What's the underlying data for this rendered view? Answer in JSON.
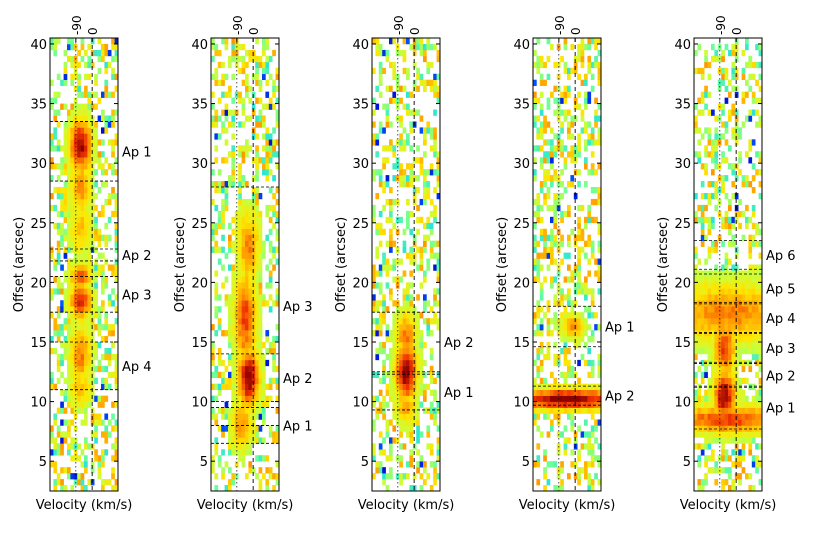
{
  "chart_data": [
    {
      "type": "heatmap",
      "title": "",
      "xlabel": "Velocity (km/s)",
      "ylabel": "Offset (arcsec)",
      "ylim": [
        2.5,
        40.5
      ],
      "y_ticks": [
        5,
        10,
        15,
        20,
        25,
        30,
        35,
        40
      ],
      "top_ticks": [
        "-90",
        "0"
      ],
      "velocity_markers": [
        "-90",
        "0"
      ],
      "apertures": [
        {
          "label": "Ap 1",
          "center": 31,
          "half": 2.5
        },
        {
          "label": "Ap 2",
          "center": 22.3,
          "half": 0.5
        },
        {
          "label": "Ap 3",
          "center": 19,
          "half": 1.5
        },
        {
          "label": "Ap 4",
          "center": 13,
          "half": 2
        }
      ],
      "emission_components": [
        {
          "offset": 31.5,
          "width": 2.2,
          "velocity": 0.45,
          "amp": 1.0
        },
        {
          "offset": 28,
          "width": 2.5,
          "velocity": 0.45,
          "amp": 0.55
        },
        {
          "offset": 24.5,
          "width": 2.0,
          "velocity": 0.45,
          "amp": 0.45
        },
        {
          "offset": 20.5,
          "width": 1.2,
          "velocity": 0.45,
          "amp": 0.7
        },
        {
          "offset": 18.5,
          "width": 1.6,
          "velocity": 0.45,
          "amp": 0.85
        },
        {
          "offset": 14,
          "width": 2.5,
          "velocity": 0.45,
          "amp": 0.6
        },
        {
          "offset": 11,
          "width": 1.5,
          "velocity": 0.45,
          "amp": 0.45
        }
      ]
    },
    {
      "type": "heatmap",
      "title": "",
      "xlabel": "Velocity (km/s)",
      "ylabel": "Offset (arcsec)",
      "ylim": [
        2.5,
        40.5
      ],
      "y_ticks": [
        5,
        10,
        15,
        20,
        25,
        30,
        35,
        40
      ],
      "top_ticks": [
        "-90",
        "0"
      ],
      "velocity_markers": [
        "-90",
        "0"
      ],
      "apertures": [
        {
          "label": "Ap 3",
          "center": 18,
          "half": 10
        },
        {
          "label": "Ap 2",
          "center": 12,
          "half": 2
        },
        {
          "label": "Ap 1",
          "center": 8,
          "half": 1.5
        }
      ],
      "emission_components": [
        {
          "offset": 12,
          "width": 2.5,
          "velocity": 0.55,
          "amp": 1.0
        },
        {
          "offset": 17,
          "width": 4.0,
          "velocity": 0.5,
          "amp": 0.75
        },
        {
          "offset": 23,
          "width": 3.0,
          "velocity": 0.55,
          "amp": 0.6
        },
        {
          "offset": 8,
          "width": 2.0,
          "velocity": 0.45,
          "amp": 0.55
        }
      ]
    },
    {
      "type": "heatmap",
      "title": "",
      "xlabel": "Velocity (km/s)",
      "ylabel": "Offset (arcsec)",
      "ylim": [
        2.5,
        40.5
      ],
      "y_ticks": [
        5,
        10,
        15,
        20,
        25,
        30,
        35,
        40
      ],
      "top_ticks": [
        "-90",
        "0"
      ],
      "velocity_markers": [
        "-90",
        "0"
      ],
      "apertures": [
        {
          "label": "Ap 2",
          "center": 15,
          "half": 2.5
        },
        {
          "label": "Ap 1",
          "center": 10.8,
          "half": 1.5
        }
      ],
      "emission_components": [
        {
          "offset": 12.5,
          "width": 2.5,
          "velocity": 0.5,
          "amp": 1.0
        },
        {
          "offset": 15.5,
          "width": 2.0,
          "velocity": 0.5,
          "amp": 0.6
        },
        {
          "offset": 9.5,
          "width": 1.5,
          "velocity": 0.5,
          "amp": 0.5
        }
      ]
    },
    {
      "type": "heatmap",
      "title": "",
      "xlabel": "Velocity (km/s)",
      "ylabel": "Offset (arcsec)",
      "ylim": [
        2.5,
        40.5
      ],
      "y_ticks": [
        5,
        10,
        15,
        20,
        25,
        30,
        35,
        40
      ],
      "top_ticks": [
        "-90",
        "0"
      ],
      "velocity_markers": [
        "-90",
        "0"
      ],
      "apertures": [
        {
          "label": "Ap 1",
          "center": 16.3,
          "half": 1.7
        },
        {
          "label": "Ap 2",
          "center": 10.5,
          "half": 0.8
        }
      ],
      "emission_components": [
        {
          "offset": 10.2,
          "width": 0.9,
          "velocity": 0.5,
          "amp": 1.0,
          "wide": true
        },
        {
          "offset": 16.3,
          "width": 0.9,
          "velocity": 0.6,
          "amp": 0.6
        }
      ]
    },
    {
      "type": "heatmap",
      "title": "",
      "xlabel": "Velocity (km/s)",
      "ylabel": "Offset (arcsec)",
      "ylim": [
        2.5,
        40.5
      ],
      "y_ticks": [
        5,
        10,
        15,
        20,
        25,
        30,
        35,
        40
      ],
      "top_ticks": [
        "-90",
        "0"
      ],
      "velocity_markers": [
        "-90",
        "0"
      ],
      "apertures": [
        {
          "label": "Ap 6",
          "center": 22.3,
          "half": 1.2
        },
        {
          "label": "Ap 5",
          "center": 19.5,
          "half": 1.2
        },
        {
          "label": "Ap 4",
          "center": 17,
          "half": 1.2
        },
        {
          "label": "Ap 3",
          "center": 14.5,
          "half": 1.2
        },
        {
          "label": "Ap 2",
          "center": 12.2,
          "half": 1.0
        },
        {
          "label": "Ap 1",
          "center": 9.5,
          "half": 1.8
        }
      ],
      "emission_components": [
        {
          "offset": 10.5,
          "width": 2.0,
          "velocity": 0.45,
          "amp": 1.0
        },
        {
          "offset": 8.5,
          "width": 1.2,
          "velocity": 0.5,
          "amp": 0.75,
          "wide": true
        },
        {
          "offset": 14.5,
          "width": 2.5,
          "velocity": 0.45,
          "amp": 0.75
        },
        {
          "offset": 17.5,
          "width": 2.5,
          "velocity": 0.5,
          "amp": 0.6,
          "wide": true
        }
      ]
    }
  ]
}
